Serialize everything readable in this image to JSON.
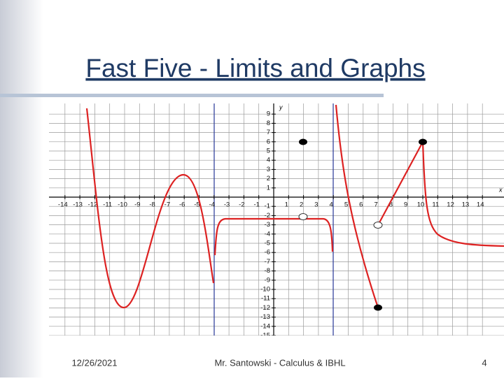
{
  "slide": {
    "title": "Fast Five - Limits and Graphs",
    "date": "12/26/2021",
    "author": "Mr. Santowski - Calculus & IBHL",
    "page": "4"
  },
  "graph": {
    "x_axis_label": "x",
    "y_axis_label": "y",
    "xticks": [
      -14,
      -13,
      -12,
      -11,
      -10,
      -9,
      -8,
      -7,
      -6,
      -5,
      -4,
      -3,
      -2,
      -1,
      1,
      2,
      3,
      4,
      5,
      6,
      7,
      8,
      9,
      10,
      11,
      12,
      13,
      14
    ],
    "yticks": [
      9,
      8,
      7,
      6,
      5,
      4,
      3,
      2,
      1,
      -1,
      -2,
      -3,
      -4,
      -5,
      -6,
      -7,
      -8,
      -9,
      -10,
      -11,
      -12,
      -13,
      -14,
      -15
    ]
  }
}
